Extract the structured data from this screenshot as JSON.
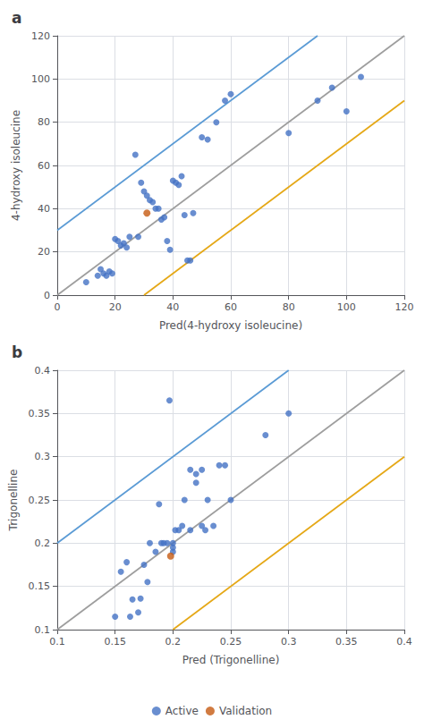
{
  "chart_data": [
    {
      "type": "scatter",
      "title": "a",
      "xlabel": "Pred(4-hydroxy isoleucine)",
      "ylabel": "4-hydroxy isoleucine",
      "xlim": [
        0,
        120
      ],
      "ylim": [
        0,
        120
      ],
      "xticks": [
        0,
        20,
        40,
        60,
        80,
        100,
        120
      ],
      "yticks": [
        0,
        20,
        40,
        60,
        80,
        100,
        120
      ],
      "grid": true,
      "series": [
        {
          "type": "line",
          "color": "#9E9E9E",
          "x": [
            0,
            120
          ],
          "values": [
            0,
            120
          ]
        },
        {
          "type": "line",
          "color": "#5B9BD5",
          "x": [
            0,
            90
          ],
          "values": [
            30,
            120
          ]
        },
        {
          "type": "line",
          "color": "#E5A817",
          "x": [
            30,
            120
          ],
          "values": [
            0,
            90
          ]
        },
        {
          "name": "Active",
          "type": "scatter",
          "marker": "circle",
          "color": "#4472C4",
          "x": [
            10,
            14,
            15,
            16,
            17,
            18,
            19,
            20,
            21,
            22,
            23,
            24,
            25,
            27,
            28,
            29,
            30,
            31,
            32,
            33,
            34,
            35,
            36,
            37,
            38,
            39,
            40,
            41,
            42,
            43,
            44,
            45,
            46,
            47,
            50,
            52,
            55,
            58,
            60,
            80,
            90,
            95,
            100,
            105
          ],
          "values": [
            6,
            9,
            12,
            10,
            9,
            11,
            10,
            26,
            25,
            23,
            24,
            22,
            27,
            65,
            27,
            52,
            48,
            46,
            44,
            43,
            40,
            40,
            35,
            36,
            25,
            21,
            53,
            52,
            51,
            55,
            37,
            16,
            16,
            38,
            73,
            72,
            80,
            90,
            93,
            75,
            90,
            96,
            85,
            101
          ]
        },
        {
          "name": "Validation",
          "type": "scatter",
          "marker": "circle",
          "color": "#C55A11",
          "x": [
            31
          ],
          "values": [
            38
          ]
        }
      ]
    },
    {
      "type": "scatter",
      "title": "b",
      "xlabel": "Pred (Trigonelline)",
      "ylabel": "Trigonelline",
      "xlim": [
        0.1,
        0.4
      ],
      "ylim": [
        0.1,
        0.4
      ],
      "xticks": [
        0.1,
        0.15,
        0.2,
        0.25,
        0.3,
        0.35,
        0.4
      ],
      "yticks": [
        0.1,
        0.15,
        0.2,
        0.25,
        0.3,
        0.35,
        0.4
      ],
      "grid": true,
      "legend": "bottom",
      "series": [
        {
          "type": "line",
          "color": "#9E9E9E",
          "x": [
            0.1,
            0.4
          ],
          "values": [
            0.1,
            0.4
          ]
        },
        {
          "type": "line",
          "color": "#5B9BD5",
          "x": [
            0.1,
            0.3
          ],
          "values": [
            0.2,
            0.4
          ]
        },
        {
          "type": "line",
          "color": "#E5A817",
          "x": [
            0.2,
            0.4
          ],
          "values": [
            0.1,
            0.3
          ]
        },
        {
          "name": "Active",
          "type": "scatter",
          "marker": "circle",
          "color": "#4472C4",
          "x": [
            0.15,
            0.155,
            0.16,
            0.163,
            0.165,
            0.17,
            0.172,
            0.175,
            0.178,
            0.18,
            0.185,
            0.188,
            0.19,
            0.192,
            0.195,
            0.197,
            0.2,
            0.2,
            0.2,
            0.202,
            0.205,
            0.208,
            0.21,
            0.215,
            0.215,
            0.22,
            0.22,
            0.225,
            0.225,
            0.228,
            0.23,
            0.235,
            0.24,
            0.245,
            0.25,
            0.28,
            0.3
          ],
          "values": [
            0.115,
            0.167,
            0.178,
            0.115,
            0.135,
            0.12,
            0.136,
            0.175,
            0.155,
            0.2,
            0.19,
            0.245,
            0.2,
            0.2,
            0.2,
            0.365,
            0.2,
            0.195,
            0.19,
            0.215,
            0.215,
            0.22,
            0.25,
            0.285,
            0.215,
            0.28,
            0.27,
            0.22,
            0.285,
            0.215,
            0.25,
            0.22,
            0.29,
            0.29,
            0.25,
            0.325,
            0.35
          ]
        },
        {
          "name": "Validation",
          "type": "scatter",
          "marker": "circle",
          "color": "#C55A11",
          "x": [
            0.198
          ],
          "values": [
            0.185
          ]
        }
      ]
    }
  ]
}
